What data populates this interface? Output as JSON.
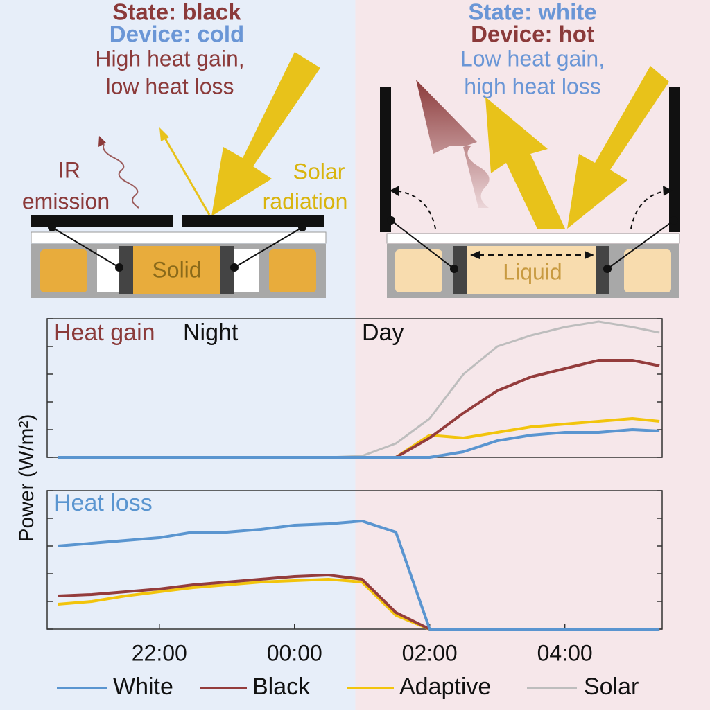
{
  "diagram": {
    "left": {
      "state": "State: black",
      "device": "Device: cold",
      "line1": "High heat gain,",
      "line2": "low heat loss",
      "ir1": "IR",
      "ir2": "emission",
      "solar1": "Solar",
      "solar2": "radiation",
      "phase": "Solid"
    },
    "right": {
      "state": "State: white",
      "device": "Device: hot",
      "line1": "Low heat gain,",
      "line2": "high heat loss",
      "phase": "Liquid"
    }
  },
  "chart_data": [
    {
      "type": "line",
      "title": "Heat gain",
      "ylabel": "Power (W/m²)",
      "annotations": [
        "Night",
        "Day"
      ],
      "day_start": 24.9,
      "x": [
        20.5,
        21,
        21.5,
        22,
        22.5,
        23,
        23.5,
        24,
        24.5,
        25,
        25.5,
        26,
        26.5,
        27,
        27.5,
        28,
        28.5,
        29,
        29.4
      ],
      "xlim": [
        20.34,
        29.44
      ],
      "ylim": [
        0,
        5
      ],
      "yticks": [
        0,
        1,
        2,
        3,
        4,
        5
      ],
      "series": [
        {
          "name": "White",
          "color": "#5a95d0",
          "values": [
            0,
            0,
            0,
            0,
            0,
            0,
            0,
            0,
            0,
            0,
            0,
            0,
            0.2,
            0.6,
            0.8,
            0.9,
            0.9,
            1.0,
            0.95
          ]
        },
        {
          "name": "Black",
          "color": "#943c3c",
          "values": [
            0,
            0,
            0,
            0,
            0,
            0,
            0,
            0,
            0,
            0,
            0,
            0.7,
            1.6,
            2.4,
            2.9,
            3.2,
            3.5,
            3.5,
            3.3
          ]
        },
        {
          "name": "Adaptive",
          "color": "#f2c40c",
          "values": [
            0,
            0,
            0,
            0,
            0,
            0,
            0,
            0,
            0,
            0,
            0,
            0.8,
            0.7,
            0.9,
            1.1,
            1.2,
            1.3,
            1.4,
            1.3
          ]
        },
        {
          "name": "Solar",
          "color": "#bdbdbd",
          "values": [
            0,
            0,
            0,
            0,
            0,
            0,
            0,
            0,
            0,
            0.05,
            0.5,
            1.4,
            3.0,
            4.0,
            4.4,
            4.7,
            4.9,
            4.7,
            4.5
          ]
        }
      ]
    },
    {
      "type": "line",
      "title": "Heat loss",
      "x": [
        20.5,
        21,
        21.5,
        22,
        22.5,
        23,
        23.5,
        24,
        24.5,
        25,
        25.5,
        26,
        26.5,
        27,
        27.5,
        28,
        28.5,
        29,
        29.4
      ],
      "xlim": [
        20.34,
        29.44
      ],
      "ylim": [
        0,
        5
      ],
      "yticks": [
        0,
        1,
        2,
        3,
        4,
        5
      ],
      "xticks": [
        {
          "value": 22,
          "label": "22:00"
        },
        {
          "value": 24,
          "label": "00:00"
        },
        {
          "value": 26,
          "label": "02:00"
        },
        {
          "value": 28,
          "label": "04:00"
        }
      ],
      "series": [
        {
          "color": "#5a95d0",
          "values": [
            3.0,
            3.1,
            3.2,
            3.3,
            3.5,
            3.5,
            3.6,
            3.75,
            3.8,
            3.9,
            3.5,
            0,
            0,
            0,
            0,
            0,
            0,
            0,
            0
          ]
        },
        {
          "color": "#943c3c",
          "values": [
            1.2,
            1.25,
            1.35,
            1.45,
            1.6,
            1.7,
            1.8,
            1.9,
            1.95,
            1.8,
            0.6,
            0,
            0,
            0,
            0,
            0,
            0,
            0,
            0
          ]
        },
        {
          "color": "#f2c40c",
          "values": [
            0.9,
            1.0,
            1.2,
            1.35,
            1.5,
            1.6,
            1.7,
            1.75,
            1.8,
            1.7,
            0.5,
            0,
            0,
            0,
            0,
            0,
            0,
            0,
            0
          ]
        }
      ]
    }
  ]
}
